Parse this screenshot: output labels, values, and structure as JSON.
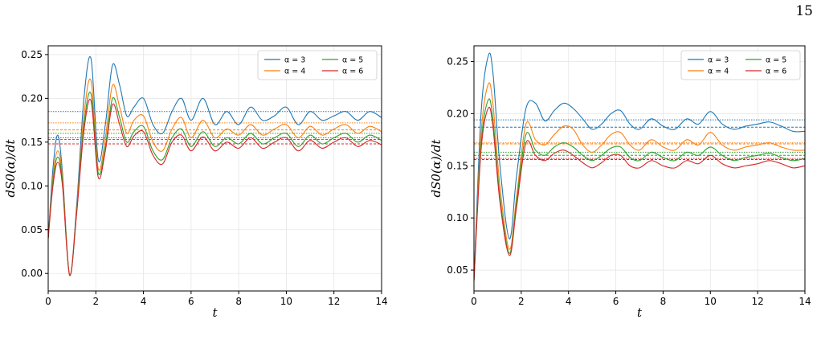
{
  "page_number": "15",
  "chart_data": [
    {
      "type": "line",
      "xlabel": "t",
      "ylabel": "dS0(α)/dt",
      "xlim": [
        0,
        14
      ],
      "ylim": [
        -0.02,
        0.26
      ],
      "xticks": [
        "0",
        "2",
        "4",
        "6",
        "8",
        "10",
        "12",
        "14"
      ],
      "yticks": [
        "0.00",
        "0.05",
        "0.10",
        "0.15",
        "0.20",
        "0.25"
      ],
      "grid": true,
      "legend_position": "top-right",
      "legend_columns": 2,
      "series": [
        {
          "name": "α = 3",
          "color": "#1f77b4",
          "x": [
            0,
            0.2,
            0.4,
            0.6,
            0.9,
            1.2,
            1.5,
            1.8,
            2.1,
            2.4,
            2.7,
            3.0,
            3.3,
            3.6,
            4.0,
            4.4,
            4.8,
            5.2,
            5.6,
            6.0,
            6.5,
            7.0,
            7.5,
            8.0,
            8.5,
            9.0,
            9.5,
            10.0,
            10.5,
            11.0,
            11.5,
            12.0,
            12.5,
            13.0,
            13.5,
            14.0
          ],
          "y": [
            0.04,
            0.12,
            0.158,
            0.115,
            -0.002,
            0.08,
            0.2,
            0.245,
            0.13,
            0.17,
            0.238,
            0.215,
            0.18,
            0.19,
            0.2,
            0.17,
            0.16,
            0.185,
            0.2,
            0.175,
            0.2,
            0.17,
            0.185,
            0.17,
            0.19,
            0.175,
            0.18,
            0.19,
            0.17,
            0.185,
            0.175,
            0.18,
            0.185,
            0.175,
            0.185,
            0.178
          ],
          "hline": 0.185
        },
        {
          "name": "α = 4",
          "color": "#ff7f0e",
          "x": [
            0,
            0.2,
            0.4,
            0.6,
            0.9,
            1.2,
            1.5,
            1.8,
            2.1,
            2.4,
            2.7,
            3.0,
            3.3,
            3.6,
            4.0,
            4.4,
            4.8,
            5.2,
            5.6,
            6.0,
            6.5,
            7.0,
            7.5,
            8.0,
            8.5,
            9.0,
            9.5,
            10.0,
            10.5,
            11.0,
            11.5,
            12.0,
            12.5,
            13.0,
            13.5,
            14.0
          ],
          "y": [
            0.04,
            0.11,
            0.14,
            0.11,
            -0.002,
            0.075,
            0.18,
            0.22,
            0.12,
            0.155,
            0.215,
            0.19,
            0.16,
            0.175,
            0.18,
            0.15,
            0.14,
            0.165,
            0.178,
            0.155,
            0.175,
            0.155,
            0.165,
            0.158,
            0.17,
            0.158,
            0.165,
            0.17,
            0.155,
            0.168,
            0.158,
            0.165,
            0.17,
            0.16,
            0.168,
            0.162
          ],
          "hline": 0.172,
          "hline2": 0.164
        },
        {
          "name": "α = 5",
          "color": "#2ca02c",
          "x": [
            0,
            0.2,
            0.4,
            0.6,
            0.9,
            1.2,
            1.5,
            1.8,
            2.1,
            2.4,
            2.7,
            3.0,
            3.3,
            3.6,
            4.0,
            4.4,
            4.8,
            5.2,
            5.6,
            6.0,
            6.5,
            7.0,
            7.5,
            8.0,
            8.5,
            9.0,
            9.5,
            10.0,
            10.5,
            11.0,
            11.5,
            12.0,
            12.5,
            13.0,
            13.5,
            14.0
          ],
          "y": [
            0.04,
            0.105,
            0.133,
            0.105,
            -0.002,
            0.072,
            0.17,
            0.205,
            0.115,
            0.145,
            0.2,
            0.178,
            0.15,
            0.162,
            0.168,
            0.14,
            0.13,
            0.155,
            0.165,
            0.145,
            0.162,
            0.145,
            0.155,
            0.148,
            0.16,
            0.148,
            0.155,
            0.16,
            0.145,
            0.158,
            0.148,
            0.155,
            0.16,
            0.15,
            0.158,
            0.152
          ],
          "hline": 0.16,
          "hline2": 0.153
        },
        {
          "name": "α = 6",
          "color": "#d62728",
          "x": [
            0,
            0.2,
            0.4,
            0.6,
            0.9,
            1.2,
            1.5,
            1.8,
            2.1,
            2.4,
            2.7,
            3.0,
            3.3,
            3.6,
            4.0,
            4.4,
            4.8,
            5.2,
            5.6,
            6.0,
            6.5,
            7.0,
            7.5,
            8.0,
            8.5,
            9.0,
            9.5,
            10.0,
            10.5,
            11.0,
            11.5,
            12.0,
            12.5,
            13.0,
            13.5,
            14.0
          ],
          "y": [
            0.04,
            0.1,
            0.127,
            0.1,
            -0.002,
            0.07,
            0.163,
            0.197,
            0.11,
            0.14,
            0.193,
            0.17,
            0.145,
            0.157,
            0.162,
            0.135,
            0.125,
            0.15,
            0.158,
            0.14,
            0.156,
            0.14,
            0.15,
            0.143,
            0.155,
            0.143,
            0.15,
            0.155,
            0.14,
            0.152,
            0.143,
            0.15,
            0.155,
            0.145,
            0.152,
            0.147
          ],
          "hline": 0.155,
          "hline2": 0.148
        }
      ]
    },
    {
      "type": "line",
      "xlabel": "t",
      "ylabel": "dS0(α)/dt",
      "xlim": [
        0,
        14
      ],
      "ylim": [
        0.03,
        0.265
      ],
      "xticks": [
        "0",
        "2",
        "4",
        "6",
        "8",
        "10",
        "12",
        "14"
      ],
      "yticks": [
        "0.05",
        "0.10",
        "0.15",
        "0.20",
        "0.25"
      ],
      "grid": true,
      "legend_position": "top-right",
      "legend_columns": 2,
      "series": [
        {
          "name": "α = 3",
          "color": "#1f77b4",
          "x": [
            0,
            0.3,
            0.6,
            0.8,
            1.1,
            1.5,
            1.8,
            2.2,
            2.6,
            3.0,
            3.4,
            3.8,
            4.2,
            4.6,
            5.0,
            5.4,
            5.8,
            6.2,
            6.6,
            7.0,
            7.5,
            8.0,
            8.5,
            9.0,
            9.5,
            10.0,
            10.5,
            11.0,
            11.5,
            12.0,
            12.5,
            13.0,
            13.5,
            14.0
          ],
          "y": [
            0.04,
            0.2,
            0.255,
            0.24,
            0.15,
            0.08,
            0.14,
            0.205,
            0.21,
            0.193,
            0.203,
            0.21,
            0.205,
            0.195,
            0.185,
            0.19,
            0.2,
            0.203,
            0.19,
            0.185,
            0.195,
            0.188,
            0.185,
            0.195,
            0.19,
            0.202,
            0.19,
            0.185,
            0.188,
            0.19,
            0.192,
            0.188,
            0.183,
            0.183
          ],
          "hline": 0.194,
          "hline2": 0.187
        },
        {
          "name": "α = 4",
          "color": "#ff7f0e",
          "x": [
            0,
            0.3,
            0.6,
            0.8,
            1.1,
            1.5,
            1.8,
            2.2,
            2.6,
            3.0,
            3.4,
            3.8,
            4.2,
            4.6,
            5.0,
            5.4,
            5.8,
            6.2,
            6.6,
            7.0,
            7.5,
            8.0,
            8.5,
            9.0,
            9.5,
            10.0,
            10.5,
            11.0,
            11.5,
            12.0,
            12.5,
            13.0,
            13.5,
            14.0
          ],
          "y": [
            0.04,
            0.18,
            0.228,
            0.21,
            0.13,
            0.07,
            0.12,
            0.19,
            0.175,
            0.17,
            0.18,
            0.188,
            0.185,
            0.17,
            0.163,
            0.17,
            0.18,
            0.182,
            0.17,
            0.165,
            0.175,
            0.168,
            0.165,
            0.175,
            0.17,
            0.182,
            0.17,
            0.165,
            0.168,
            0.17,
            0.172,
            0.168,
            0.165,
            0.165
          ],
          "hline": 0.172,
          "hline2": 0.171
        },
        {
          "name": "α = 5",
          "color": "#2ca02c",
          "x": [
            0,
            0.3,
            0.6,
            0.8,
            1.1,
            1.5,
            1.8,
            2.2,
            2.6,
            3.0,
            3.4,
            3.8,
            4.2,
            4.6,
            5.0,
            5.4,
            5.8,
            6.2,
            6.6,
            7.0,
            7.5,
            8.0,
            8.5,
            9.0,
            9.5,
            10.0,
            10.5,
            11.0,
            11.5,
            12.0,
            12.5,
            13.0,
            13.5,
            14.0
          ],
          "y": [
            0.04,
            0.17,
            0.213,
            0.195,
            0.12,
            0.066,
            0.115,
            0.18,
            0.165,
            0.16,
            0.168,
            0.172,
            0.168,
            0.16,
            0.155,
            0.16,
            0.167,
            0.168,
            0.158,
            0.155,
            0.163,
            0.158,
            0.155,
            0.163,
            0.16,
            0.168,
            0.16,
            0.155,
            0.158,
            0.16,
            0.162,
            0.158,
            0.155,
            0.157
          ],
          "hline": 0.163,
          "hline2": 0.16
        },
        {
          "name": "α = 6",
          "color": "#d62728",
          "x": [
            0,
            0.3,
            0.6,
            0.8,
            1.1,
            1.5,
            1.8,
            2.2,
            2.6,
            3.0,
            3.4,
            3.8,
            4.2,
            4.6,
            5.0,
            5.4,
            5.8,
            6.2,
            6.6,
            7.0,
            7.5,
            8.0,
            8.5,
            9.0,
            9.5,
            10.0,
            10.5,
            11.0,
            11.5,
            12.0,
            12.5,
            13.0,
            13.5,
            14.0
          ],
          "y": [
            0.04,
            0.165,
            0.205,
            0.188,
            0.115,
            0.064,
            0.11,
            0.172,
            0.16,
            0.155,
            0.162,
            0.165,
            0.16,
            0.153,
            0.148,
            0.153,
            0.16,
            0.16,
            0.15,
            0.148,
            0.155,
            0.15,
            0.148,
            0.155,
            0.152,
            0.16,
            0.152,
            0.148,
            0.15,
            0.152,
            0.155,
            0.152,
            0.148,
            0.15
          ],
          "hline": 0.157,
          "hline2": 0.156
        }
      ]
    }
  ]
}
